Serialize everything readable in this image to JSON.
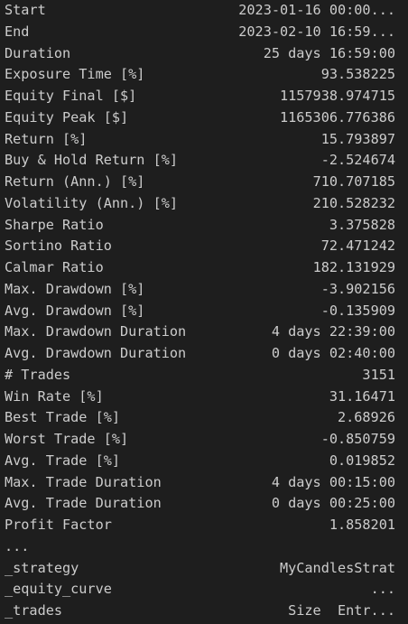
{
  "stats": [
    {
      "label": "Start",
      "value": "2023-01-16 00:00..."
    },
    {
      "label": "End",
      "value": "2023-02-10 16:59..."
    },
    {
      "label": "Duration",
      "value": "25 days 16:59:00"
    },
    {
      "label": "Exposure Time [%]",
      "value": "93.538225"
    },
    {
      "label": "Equity Final [$]",
      "value": "1157938.974715"
    },
    {
      "label": "Equity Peak [$]",
      "value": "1165306.776386"
    },
    {
      "label": "Return [%]",
      "value": "15.793897"
    },
    {
      "label": "Buy & Hold Return [%]",
      "value": "-2.524674"
    },
    {
      "label": "Return (Ann.) [%]",
      "value": "710.707185"
    },
    {
      "label": "Volatility (Ann.) [%]",
      "value": "210.528232"
    },
    {
      "label": "Sharpe Ratio",
      "value": "3.375828"
    },
    {
      "label": "Sortino Ratio",
      "value": "72.471242"
    },
    {
      "label": "Calmar Ratio",
      "value": "182.131929"
    },
    {
      "label": "Max. Drawdown [%]",
      "value": "-3.902156"
    },
    {
      "label": "Avg. Drawdown [%]",
      "value": "-0.135909"
    },
    {
      "label": "Max. Drawdown Duration",
      "value": "4 days 22:39:00"
    },
    {
      "label": "Avg. Drawdown Duration",
      "value": "0 days 02:40:00"
    },
    {
      "label": "# Trades",
      "value": "3151"
    },
    {
      "label": "Win Rate [%]",
      "value": "31.16471"
    },
    {
      "label": "Best Trade [%]",
      "value": "2.68926"
    },
    {
      "label": "Worst Trade [%]",
      "value": "-0.850759"
    },
    {
      "label": "Avg. Trade [%]",
      "value": "0.019852"
    },
    {
      "label": "Max. Trade Duration",
      "value": "4 days 00:15:00"
    },
    {
      "label": "Avg. Trade Duration",
      "value": "0 days 00:25:00"
    },
    {
      "label": "Profit Factor",
      "value": "1.858201"
    }
  ],
  "ellipsis": "...",
  "extra_rows": [
    {
      "label": "_strategy",
      "value": "MyCandlesStrat"
    },
    {
      "label": "_equity_curve",
      "value": "..."
    },
    {
      "label": "_trades",
      "value": "Size  Entr..."
    }
  ]
}
